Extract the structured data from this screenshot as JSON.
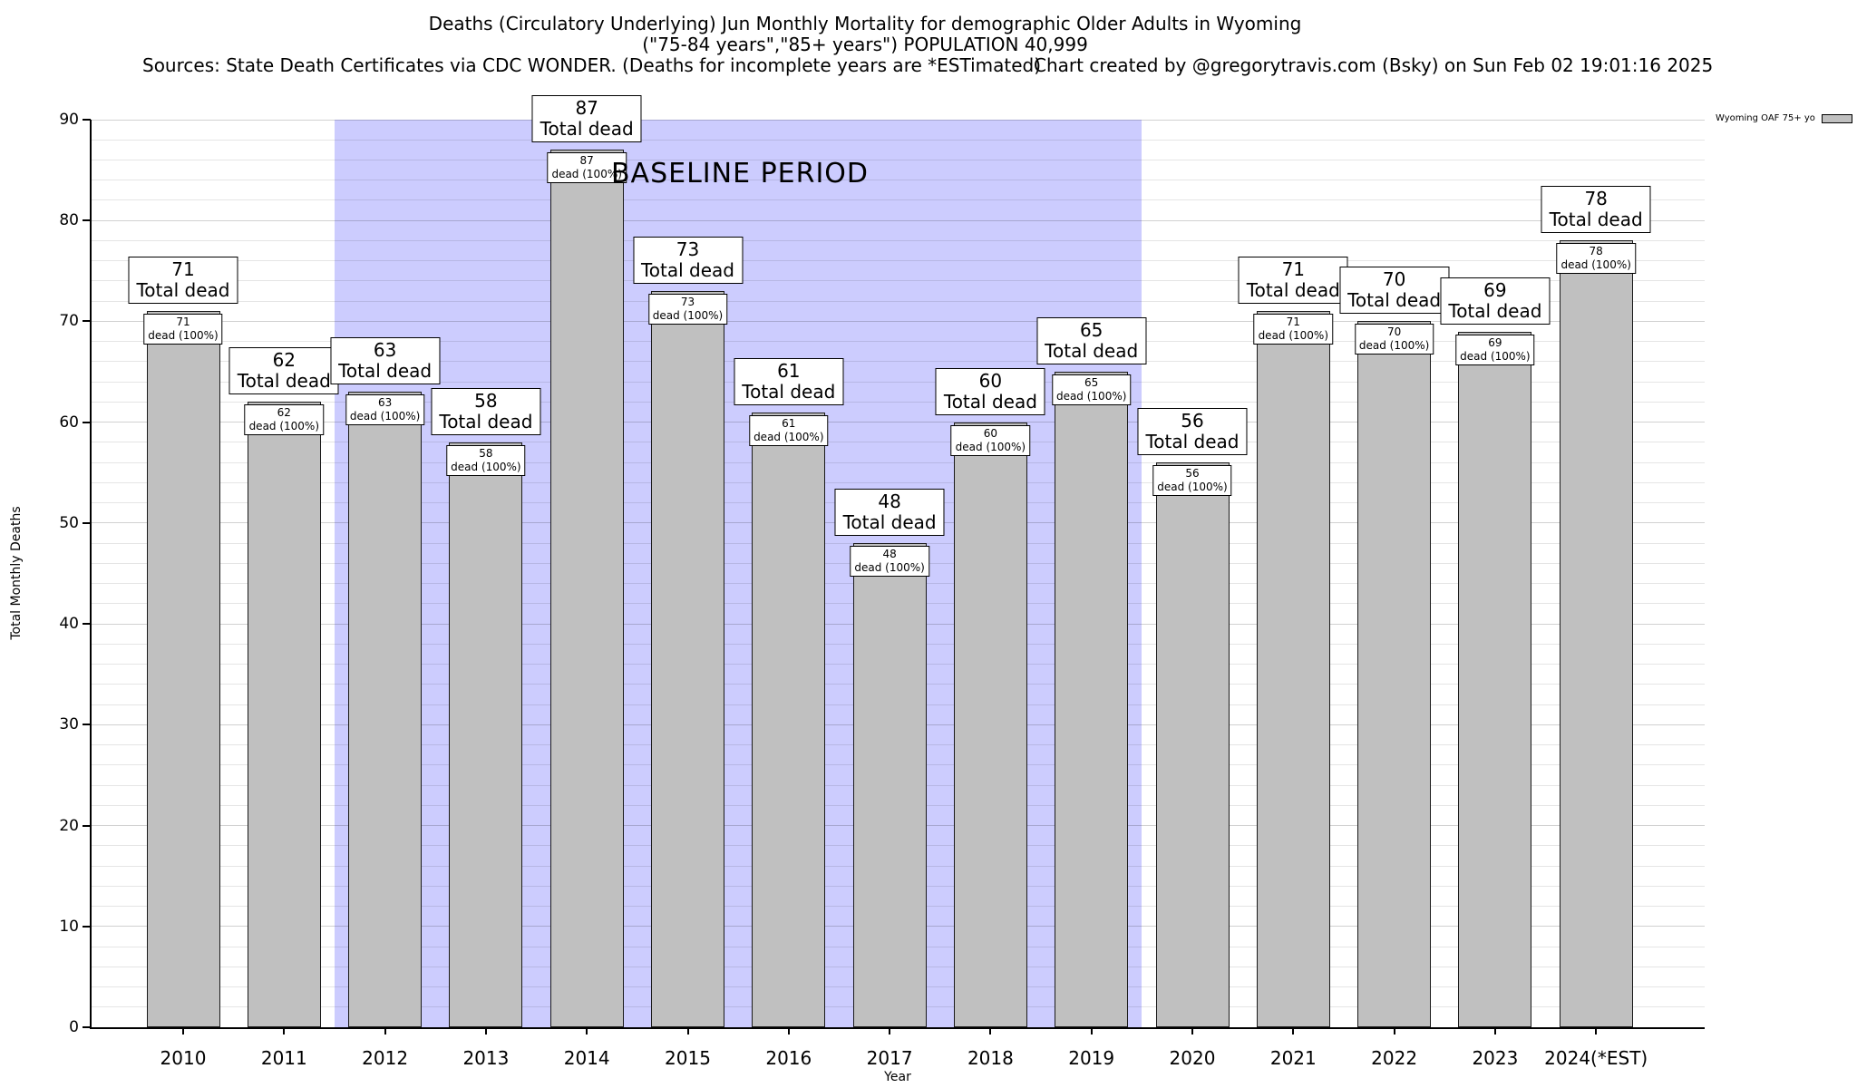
{
  "header": {
    "title": "Deaths (Circulatory Underlying) Jun Monthly Mortality for demographic Older Adults in Wyoming",
    "subtitle": "(\"75-84 years\",\"85+ years\") POPULATION 40,999",
    "sources": "Sources: State Death Certificates via CDC WONDER. (Deaths for incomplete years are *ESTimated)",
    "credit": "Chart created by @gregorytravis.com (Bsky) on Sun Feb 02 19:01:16 2025"
  },
  "chart_data": {
    "type": "bar",
    "title": "Deaths (Circulatory Underlying) Jun Monthly Mortality for demographic Older Adults in Wyoming",
    "xlabel": "Year",
    "ylabel": "Total Monthly Deaths",
    "ylim": [
      0,
      90
    ],
    "yticks": [
      0,
      10,
      20,
      30,
      40,
      50,
      60,
      70,
      80,
      90
    ],
    "grid": true,
    "legend_position": "top-right",
    "categories": [
      "2010",
      "2011",
      "2012",
      "2013",
      "2014",
      "2015",
      "2016",
      "2017",
      "2018",
      "2019",
      "2020",
      "2021",
      "2022",
      "2023",
      "2024(*EST)"
    ],
    "series": [
      {
        "name": "Wyoming OAF 75+ yo",
        "values": [
          71,
          62,
          63,
          58,
          87,
          73,
          61,
          48,
          60,
          65,
          56,
          71,
          70,
          69,
          78
        ]
      }
    ],
    "annotations": {
      "top_label_suffix": "Total dead",
      "inner_label_suffix": "dead (100%)",
      "baseline": {
        "label": "BASELINE PERIOD",
        "from_category": "2012",
        "to_category": "2019"
      }
    },
    "legend": {
      "label": "Wyoming OAF 75+ yo"
    },
    "colors": {
      "bar": "#c0c0c0",
      "baseline_region": "#ccccfe"
    }
  }
}
